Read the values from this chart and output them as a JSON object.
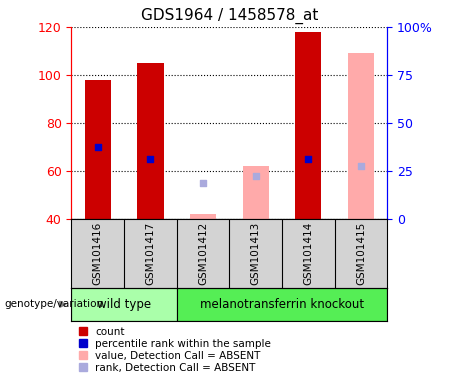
{
  "title": "GDS1964 / 1458578_at",
  "samples": [
    "GSM101416",
    "GSM101417",
    "GSM101412",
    "GSM101413",
    "GSM101414",
    "GSM101415"
  ],
  "wild_type_count": 2,
  "knockout_count": 4,
  "count_present": {
    "GSM101416": 98,
    "GSM101417": 105,
    "GSM101414": 118
  },
  "rank_present": {
    "GSM101416": 70,
    "GSM101417": 65,
    "GSM101414": 65
  },
  "value_absent": {
    "GSM101412": 42,
    "GSM101413": 62,
    "GSM101415": 109
  },
  "rank_absent": {
    "GSM101412": 55,
    "GSM101413": 58,
    "GSM101415": 62
  },
  "ylim_left": [
    40,
    120
  ],
  "ylim_right": [
    0,
    100
  ],
  "left_ticks": [
    40,
    60,
    80,
    100,
    120
  ],
  "right_ticks": [
    0,
    25,
    50,
    75,
    100
  ],
  "right_tick_labels": [
    "0",
    "25",
    "50",
    "75",
    "100%"
  ],
  "bar_width": 0.5,
  "color_count": "#cc0000",
  "color_rank_present": "#0000cc",
  "color_value_absent": "#ffaaaa",
  "color_rank_absent": "#aaaadd",
  "wt_color": "#aaffaa",
  "ko_color": "#55ee55",
  "sample_box_color": "#d3d3d3",
  "legend_items": [
    {
      "color": "#cc0000",
      "label": "count"
    },
    {
      "color": "#0000cc",
      "label": "percentile rank within the sample"
    },
    {
      "color": "#ffaaaa",
      "label": "value, Detection Call = ABSENT"
    },
    {
      "color": "#aaaadd",
      "label": "rank, Detection Call = ABSENT"
    }
  ]
}
